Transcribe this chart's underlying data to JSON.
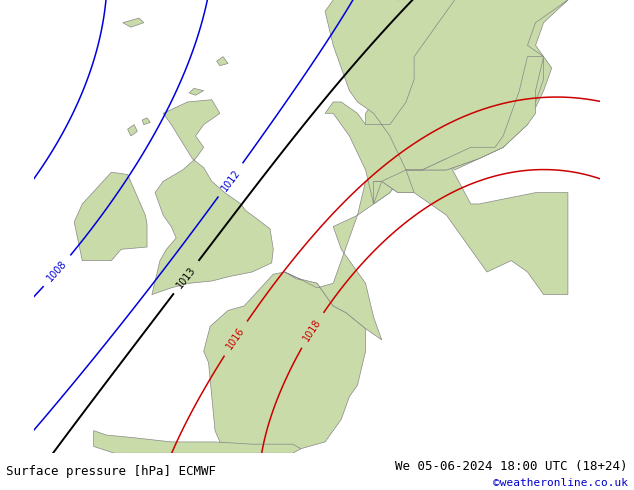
{
  "title_left": "Surface pressure [hPa] ECMWF",
  "title_right": "We 05-06-2024 18:00 UTC (18+24)",
  "copyright": "©weatheronline.co.uk",
  "bg_ocean": "#d8d8d8",
  "bg_land": "#c8dba8",
  "border_color": "#888888",
  "blue_color": "#0000dd",
  "black_color": "#000000",
  "red_color": "#cc0000",
  "label_fs": 7,
  "footer_fs": 9,
  "copy_fs": 8,
  "copy_color": "#0000cc",
  "figsize": [
    6.34,
    4.9
  ],
  "dpi": 100,
  "lon_min": -13,
  "lon_max": 22,
  "lat_min": 43,
  "lat_max": 63
}
